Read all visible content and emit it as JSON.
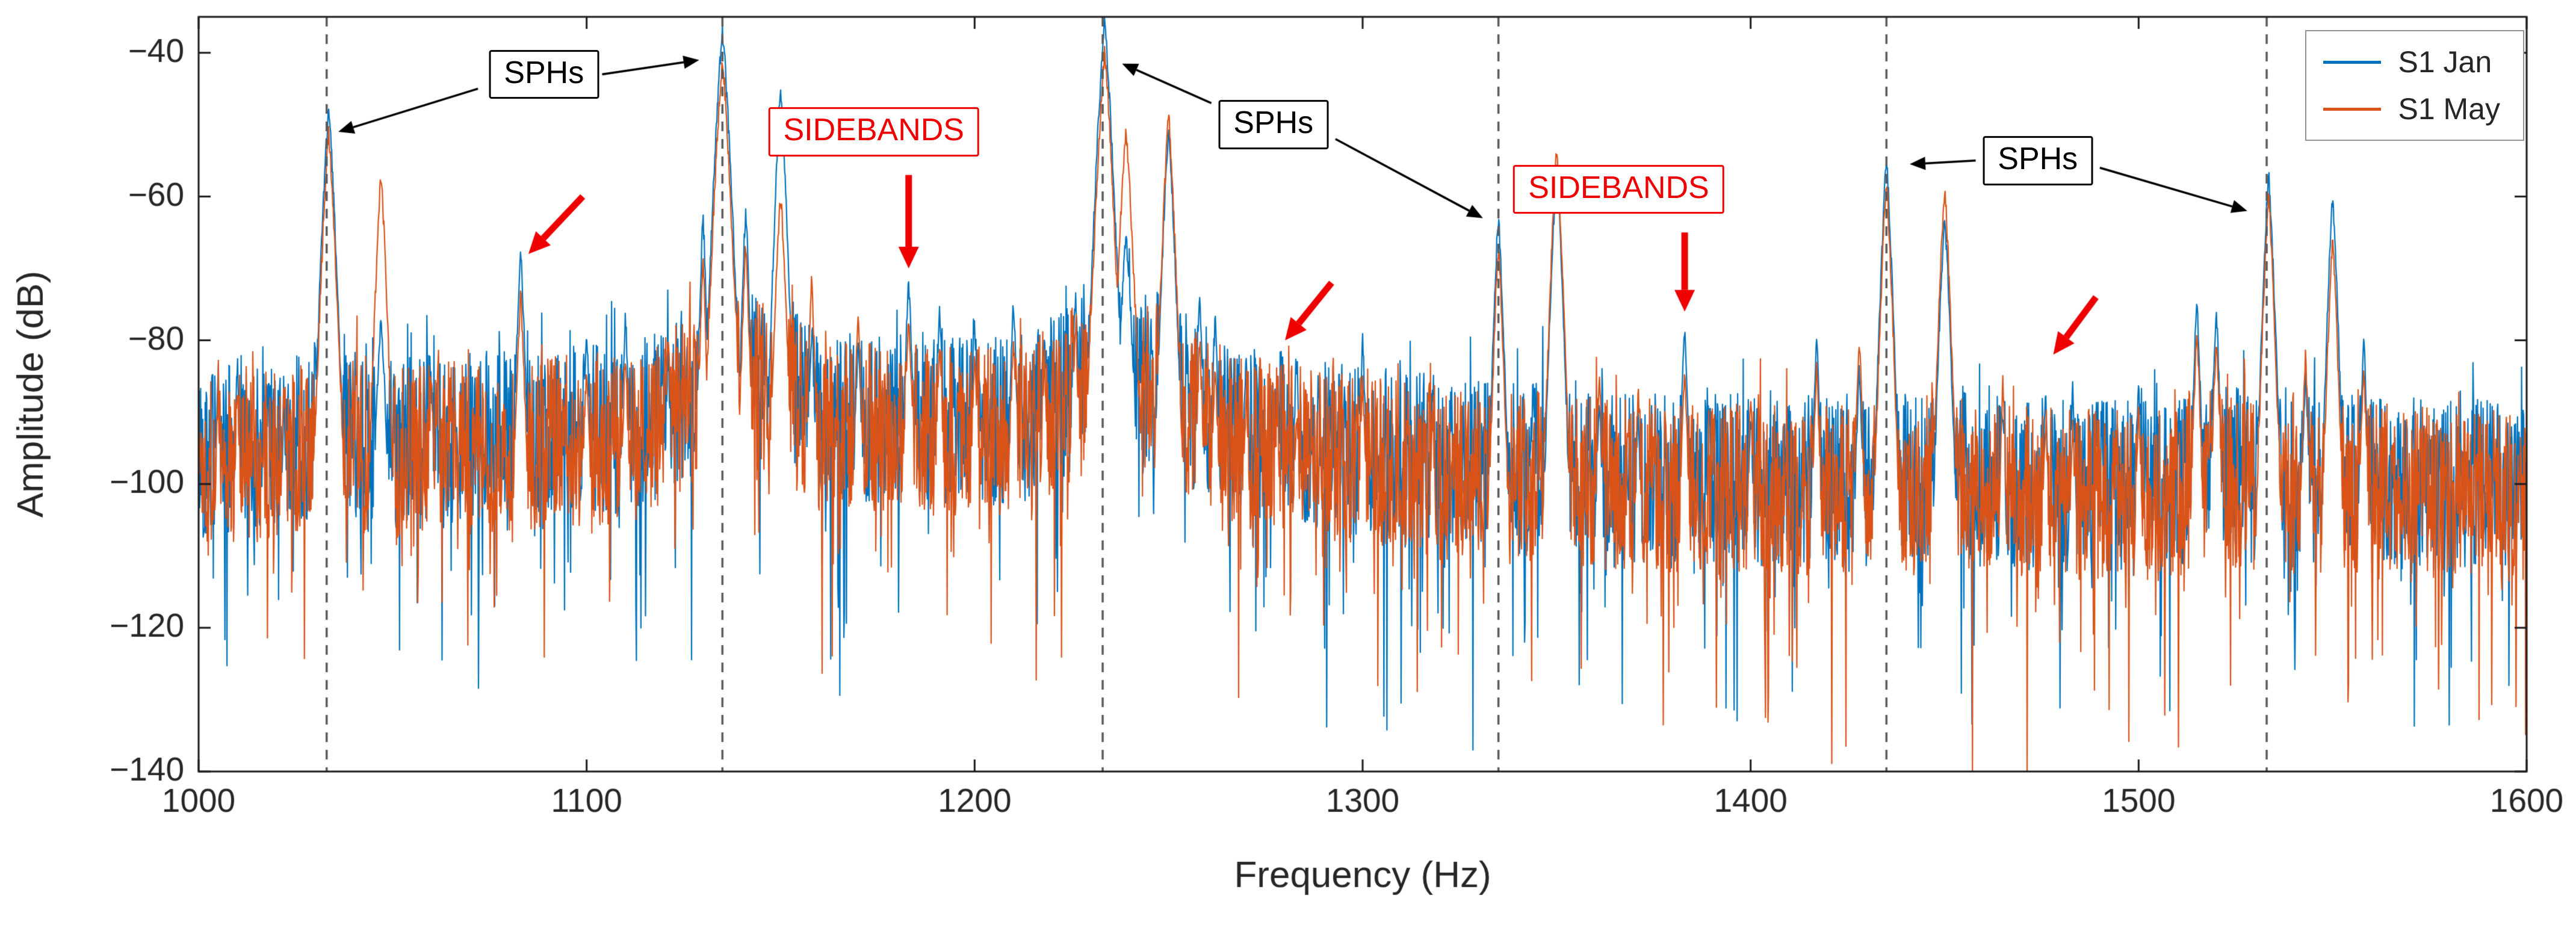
{
  "figure": {
    "background": "#ffffff"
  },
  "chart_data": {
    "type": "line",
    "title": "",
    "xlabel": "Frequency (Hz)",
    "ylabel": "Amplitude (dB)",
    "xlim": [
      1000,
      1600
    ],
    "ylim": [
      -140,
      -35
    ],
    "xticks": [
      1000,
      1100,
      1200,
      1300,
      1400,
      1500,
      1600
    ],
    "yticks": [
      -140,
      -120,
      -100,
      -80,
      -60,
      -40
    ],
    "grid": false,
    "legend_position": "top-right",
    "series": [
      {
        "name": "S1 Jan",
        "key": "jan",
        "color": "#0072BD",
        "seed": 42,
        "floor_offset": 0.5
      },
      {
        "name": "S1 May",
        "key": "may",
        "color": "#D95319",
        "seed": 1337,
        "floor_offset": -0.8
      }
    ],
    "sph_dashed_lines": [
      1033,
      1135,
      1233,
      1335,
      1435,
      1533
    ],
    "noise_floor": [
      [
        1000,
        -96
      ],
      [
        1050,
        -95
      ],
      [
        1100,
        -93
      ],
      [
        1150,
        -91
      ],
      [
        1200,
        -92
      ],
      [
        1250,
        -91
      ],
      [
        1300,
        -96
      ],
      [
        1350,
        -99
      ],
      [
        1400,
        -100
      ],
      [
        1450,
        -100
      ],
      [
        1500,
        -101
      ],
      [
        1550,
        -100
      ],
      [
        1600,
        -101
      ]
    ],
    "noise_shoulders": [
      {
        "f": 1135,
        "hw": 22,
        "raise": 7
      },
      {
        "f": 1233,
        "hw": 22,
        "raise": 7
      },
      {
        "f": 1033,
        "hw": 10,
        "raise": 4
      },
      {
        "f": 1150,
        "hw": 10,
        "raise": 4
      },
      {
        "f": 1250,
        "hw": 12,
        "raise": 4
      },
      {
        "f": 1350,
        "hw": 8,
        "raise": 3
      },
      {
        "f": 1450,
        "hw": 8,
        "raise": 3
      },
      {
        "f": 1520,
        "hw": 12,
        "raise": 3
      }
    ],
    "peaks": [
      {
        "f": 1005,
        "jan": -86,
        "may": -89,
        "w": 0.8
      },
      {
        "f": 1010,
        "jan": -83,
        "may": -87,
        "w": 0.8
      },
      {
        "f": 1022,
        "jan": -90,
        "may": -86,
        "w": 0.8
      },
      {
        "f": 1033.5,
        "jan": -48,
        "may": -51,
        "w": 1.6
      },
      {
        "f": 1047,
        "jan": -77,
        "may": -57,
        "w": 1.4
      },
      {
        "f": 1060,
        "jan": -88,
        "may": -85,
        "w": 0.8
      },
      {
        "f": 1083,
        "jan": -68,
        "may": -74,
        "w": 1.2
      },
      {
        "f": 1100,
        "jan": -79,
        "may": -84,
        "w": 1.0
      },
      {
        "f": 1110,
        "jan": -77,
        "may": -83,
        "w": 1.0
      },
      {
        "f": 1121,
        "jan": -84,
        "may": -80,
        "w": 0.9
      },
      {
        "f": 1130,
        "jan": -63,
        "may": -69,
        "w": 1.0
      },
      {
        "f": 1135,
        "jan": -37,
        "may": -41,
        "w": 1.8
      },
      {
        "f": 1141,
        "jan": -62,
        "may": -67,
        "w": 1.1
      },
      {
        "f": 1150,
        "jan": -45,
        "may": -60,
        "w": 1.4
      },
      {
        "f": 1158,
        "jan": -79,
        "may": -72,
        "w": 1.0
      },
      {
        "f": 1170,
        "jan": -80,
        "may": -76,
        "w": 1.0
      },
      {
        "f": 1183,
        "jan": -72,
        "may": -77,
        "w": 1.1
      },
      {
        "f": 1191,
        "jan": -76,
        "may": -81,
        "w": 1.0
      },
      {
        "f": 1200,
        "jan": -78,
        "may": -82,
        "w": 0.9
      },
      {
        "f": 1210,
        "jan": -75,
        "may": -80,
        "w": 1.0
      },
      {
        "f": 1218,
        "jan": -80,
        "may": -84,
        "w": 0.9
      },
      {
        "f": 1226,
        "jan": -74,
        "may": -79,
        "w": 1.0
      },
      {
        "f": 1233.5,
        "jan": -36,
        "may": -40,
        "w": 1.8
      },
      {
        "f": 1239,
        "jan": -66,
        "may": -51,
        "w": 1.7
      },
      {
        "f": 1250,
        "jan": -51,
        "may": -49,
        "w": 1.5
      },
      {
        "f": 1258,
        "jan": -75,
        "may": -81,
        "w": 1.0
      },
      {
        "f": 1262,
        "jan": -77,
        "may": -83,
        "w": 0.9
      },
      {
        "f": 1270,
        "jan": -82,
        "may": -88,
        "w": 0.9
      },
      {
        "f": 1278,
        "jan": -85,
        "may": -91,
        "w": 0.9
      },
      {
        "f": 1283,
        "jan": -84,
        "may": -90,
        "w": 0.9
      },
      {
        "f": 1300,
        "jan": -80,
        "may": -86,
        "w": 0.9
      },
      {
        "f": 1318,
        "jan": -88,
        "may": -91,
        "w": 0.8
      },
      {
        "f": 1335,
        "jan": -63,
        "may": -67,
        "w": 1.3
      },
      {
        "f": 1350,
        "jan": -56,
        "may": -53,
        "w": 1.4
      },
      {
        "f": 1361,
        "jan": -88,
        "may": -85,
        "w": 0.9
      },
      {
        "f": 1371,
        "jan": -90,
        "may": -87,
        "w": 0.8
      },
      {
        "f": 1383,
        "jan": -78,
        "may": -84,
        "w": 1.0
      },
      {
        "f": 1400,
        "jan": -90,
        "may": -88,
        "w": 0.8
      },
      {
        "f": 1417,
        "jan": -80,
        "may": -84,
        "w": 1.0
      },
      {
        "f": 1428,
        "jan": -84,
        "may": -80,
        "w": 1.0
      },
      {
        "f": 1435,
        "jan": -55,
        "may": -58,
        "w": 1.4
      },
      {
        "f": 1450,
        "jan": -63,
        "may": -59,
        "w": 1.4
      },
      {
        "f": 1465,
        "jan": -90,
        "may": -86,
        "w": 0.8
      },
      {
        "f": 1476,
        "jan": -88,
        "may": -92,
        "w": 0.9
      },
      {
        "f": 1483,
        "jan": -87,
        "may": -92,
        "w": 0.9
      },
      {
        "f": 1500,
        "jan": -86,
        "may": -90,
        "w": 0.9
      },
      {
        "f": 1515,
        "jan": -75,
        "may": -79,
        "w": 1.1
      },
      {
        "f": 1520,
        "jan": -76,
        "may": -80,
        "w": 1.1
      },
      {
        "f": 1533.5,
        "jan": -57,
        "may": -60,
        "w": 1.4
      },
      {
        "f": 1543,
        "jan": -85,
        "may": -82,
        "w": 1.0
      },
      {
        "f": 1550,
        "jan": -60,
        "may": -66,
        "w": 1.3
      },
      {
        "f": 1558,
        "jan": -80,
        "may": -84,
        "w": 1.0
      }
    ]
  },
  "legend": {
    "items": [
      {
        "label": "S1 Jan",
        "color": "#0072BD"
      },
      {
        "label": "S1 May",
        "color": "#D95319"
      }
    ]
  },
  "annotations": {
    "sphs_color": "#000000",
    "sidebands_color": "#EE0000",
    "labels": [
      {
        "id": "sphs-1",
        "text": "SPHs",
        "type": "sphs",
        "fx": 1089,
        "fy": -43,
        "arrows": [
          {
            "from": [
              1072,
              -45
            ],
            "to": [
              1036,
              -51
            ]
          },
          {
            "from": [
              1104,
              -43
            ],
            "to": [
              1129,
              -41
            ]
          }
        ]
      },
      {
        "id": "sidebands-1",
        "text": "SIDEBANDS",
        "type": "sidebands",
        "fx": 1174,
        "fy": -51,
        "arrows": [
          {
            "from": [
              1183,
              -57
            ],
            "to": [
              1183,
              -70
            ]
          }
        ]
      },
      {
        "id": "sphs-2",
        "text": "SPHs",
        "type": "sphs",
        "fx": 1277,
        "fy": -50,
        "arrows": [
          {
            "from": [
              1261,
              -47
            ],
            "to": [
              1238,
              -41.5
            ]
          },
          {
            "from": [
              1293,
              -52
            ],
            "to": [
              1331,
              -63
            ]
          }
        ]
      },
      {
        "id": "sidebands-2",
        "text": "SIDEBANDS",
        "type": "sidebands",
        "fx": 1366,
        "fy": -59,
        "arrows": [
          {
            "from": [
              1383,
              -65
            ],
            "to": [
              1383,
              -76
            ]
          }
        ]
      },
      {
        "id": "sphs-3",
        "text": "SPHs",
        "type": "sphs",
        "fx": 1474,
        "fy": -55,
        "arrows": [
          {
            "from": [
              1458,
              -55
            ],
            "to": [
              1441,
              -55.5
            ]
          },
          {
            "from": [
              1490,
              -56
            ],
            "to": [
              1528,
              -62
            ]
          }
        ]
      }
    ],
    "red_arrows": [
      {
        "from": [
          1099,
          -60
        ],
        "to": [
          1085,
          -68
        ]
      },
      {
        "from": [
          1292,
          -72
        ],
        "to": [
          1280,
          -80
        ]
      },
      {
        "from": [
          1489,
          -74
        ],
        "to": [
          1478,
          -82
        ]
      }
    ]
  }
}
